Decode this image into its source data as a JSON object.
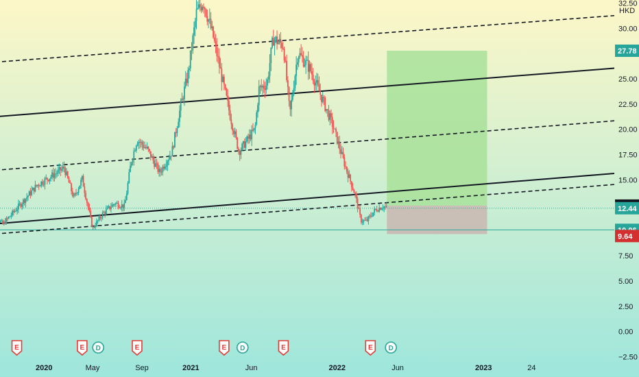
{
  "chart_data": {
    "type": "candlestick",
    "currency": "HKD",
    "y_axis": {
      "ylim": [
        -2.6,
        32.8
      ],
      "ticks": [
        "32.50",
        "30.00",
        "25.00",
        "22.50",
        "20.00",
        "17.50",
        "15.00",
        "7.50",
        "5.00",
        "2.50",
        "0.00",
        "−2.50"
      ],
      "tick_values": [
        32.5,
        30.0,
        25.0,
        22.5,
        20.0,
        17.5,
        15.0,
        7.5,
        5.0,
        2.5,
        0.0,
        -2.5
      ],
      "price_tags": [
        {
          "label": "27.78",
          "value": 27.78,
          "color": "#26a69a"
        },
        {
          "label": "12.46",
          "value": 12.46,
          "color": "#131722"
        },
        {
          "label": "12.44",
          "value": 12.2,
          "color": "#26a69a"
        },
        {
          "label": "10.06",
          "value": 10.06,
          "color": "#26a69a"
        },
        {
          "label": "9.64",
          "value": 9.45,
          "color": "#d32f2f"
        }
      ]
    },
    "x_axis": {
      "xlim": [
        "2019-08-15",
        "2024-04-20"
      ],
      "labels": [
        {
          "text": "2020",
          "date": "2020-01-01",
          "bold": true
        },
        {
          "text": "May",
          "date": "2020-05-01",
          "bold": false
        },
        {
          "text": "Sep",
          "date": "2020-09-01",
          "bold": false
        },
        {
          "text": "2021",
          "date": "2021-01-01",
          "bold": true
        },
        {
          "text": "Jun",
          "date": "2021-06-01",
          "bold": false
        },
        {
          "text": "2022",
          "date": "2022-01-01",
          "bold": true
        },
        {
          "text": "Jun",
          "date": "2022-06-01",
          "bold": false
        },
        {
          "text": "2023",
          "date": "2023-01-01",
          "bold": true
        },
        {
          "text": "24",
          "date": "2023-05-01",
          "bold": false
        }
      ]
    },
    "price_path": [
      [
        "2019-08-15",
        12.2
      ],
      [
        "2019-09-20",
        10.6
      ],
      [
        "2019-11-01",
        12.5
      ],
      [
        "2019-12-15",
        14.5
      ],
      [
        "2020-01-20",
        15.4
      ],
      [
        "2020-02-20",
        16.2
      ],
      [
        "2020-03-15",
        13.2
      ],
      [
        "2020-04-05",
        15.1
      ],
      [
        "2020-05-01",
        10.2
      ],
      [
        "2020-05-25",
        11.6
      ],
      [
        "2020-06-25",
        12.7
      ],
      [
        "2020-07-20",
        12.4
      ],
      [
        "2020-08-05",
        16.8
      ],
      [
        "2020-08-20",
        19.0
      ],
      [
        "2020-09-15",
        18.0
      ],
      [
        "2020-10-15",
        15.7
      ],
      [
        "2020-11-15",
        17.8
      ],
      [
        "2020-12-05",
        22.0
      ],
      [
        "2020-12-25",
        25.5
      ],
      [
        "2021-01-15",
        31.5
      ],
      [
        "2021-02-01",
        32.7
      ],
      [
        "2021-02-25",
        29.3
      ],
      [
        "2021-03-20",
        25.0
      ],
      [
        "2021-04-10",
        21.2
      ],
      [
        "2021-05-01",
        17.8
      ],
      [
        "2021-06-10",
        20.0
      ],
      [
        "2021-06-20",
        24.0
      ],
      [
        "2021-07-10",
        24.5
      ],
      [
        "2021-07-25",
        29.0
      ],
      [
        "2021-08-20",
        28.3
      ],
      [
        "2021-09-05",
        21.5
      ],
      [
        "2021-09-25",
        27.6
      ],
      [
        "2021-10-25",
        26.0
      ],
      [
        "2021-11-25",
        23.0
      ],
      [
        "2021-12-20",
        20.5
      ],
      [
        "2022-01-20",
        16.5
      ],
      [
        "2022-02-15",
        13.5
      ],
      [
        "2022-03-01",
        11.0
      ],
      [
        "2022-03-15",
        10.9
      ],
      [
        "2022-04-05",
        12.0
      ],
      [
        "2022-04-25",
        12.4
      ],
      [
        "2022-05-05",
        12.2
      ]
    ],
    "trend_lines": [
      {
        "style": "solid",
        "from": [
          "2019-08-15",
          35.1
        ],
        "to": [
          "2020-09-15",
          36.0
        ]
      },
      {
        "style": "dashed",
        "from": [
          "2019-08-15",
          26.6
        ],
        "to": [
          "2024-01-10",
          31.4
        ]
      },
      {
        "style": "solid",
        "from": [
          "2019-08-15",
          21.2
        ],
        "to": [
          "2024-01-10",
          26.2
        ]
      },
      {
        "style": "dashed",
        "from": [
          "2019-08-15",
          15.9
        ],
        "to": [
          "2024-01-10",
          21.0
        ]
      },
      {
        "style": "solid",
        "from": [
          "2019-08-15",
          10.6
        ],
        "to": [
          "2024-01-10",
          15.8
        ]
      },
      {
        "style": "dashed",
        "from": [
          "2019-08-15",
          9.6
        ],
        "to": [
          "2024-01-10",
          14.7
        ]
      }
    ],
    "position": {
      "start": "2022-05-05",
      "end": "2023-01-10",
      "entry": 12.46,
      "target": 27.78,
      "stop": 9.64
    },
    "horizontal_lines": [
      {
        "value": 10.06,
        "style": "solid"
      },
      {
        "value": 12.2,
        "style": "dotted"
      }
    ],
    "events": [
      {
        "type": "E",
        "date": "2019-10-25"
      },
      {
        "type": "E",
        "date": "2020-04-05"
      },
      {
        "type": "D",
        "date": "2020-05-15"
      },
      {
        "type": "E",
        "date": "2020-08-20"
      },
      {
        "type": "E",
        "date": "2021-03-25"
      },
      {
        "type": "D",
        "date": "2021-05-10"
      },
      {
        "type": "E",
        "date": "2021-08-20"
      },
      {
        "type": "E",
        "date": "2022-03-25"
      },
      {
        "type": "D",
        "date": "2022-05-15"
      }
    ]
  },
  "colors": {
    "bg_top": "#fdf7c8",
    "bg_bottom": "#9ee6dc",
    "candle_up": "#26a69a",
    "candle_down": "#ef5350",
    "profit_zone": "#a8e09a",
    "loss_zone": "#c9b9b3",
    "event_e": "#e53935",
    "event_d": "#26a69a"
  }
}
